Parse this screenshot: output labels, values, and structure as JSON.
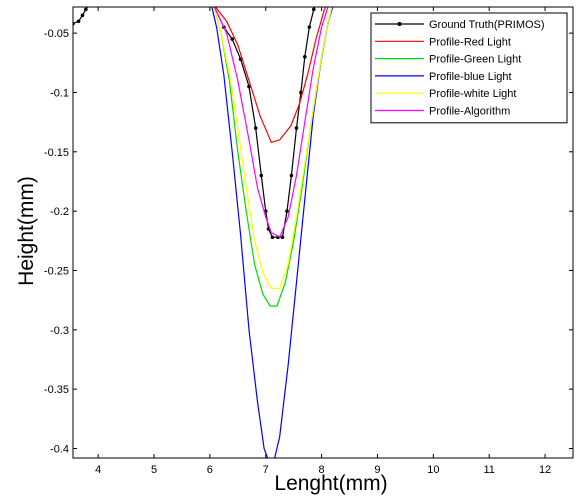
{
  "chart_data": {
    "type": "line",
    "title": "",
    "xlabel": "Lenght(mm)",
    "ylabel": "Height(mm)",
    "xlim": [
      3.55,
      12.5
    ],
    "ylim": [
      -0.408,
      -0.028
    ],
    "xticks": [
      4,
      5,
      6,
      7,
      8,
      9,
      10,
      11,
      12
    ],
    "yticks": [
      -0.05,
      -0.1,
      -0.15,
      -0.2,
      -0.25,
      -0.3,
      -0.35,
      -0.4
    ],
    "ytick_labels": [
      "-0.05",
      "-0.1",
      "-0.15",
      "-0.2",
      "-0.25",
      "-0.3",
      "-0.35",
      "-0.4"
    ],
    "grid": false,
    "legend_position": "top-right",
    "series": [
      {
        "name": "Ground Truth(PRIMOS)",
        "color": "#000000",
        "marker": true,
        "points": [
          [
            3.55,
            -0.042
          ],
          [
            3.65,
            -0.04
          ],
          [
            3.72,
            -0.035
          ],
          [
            3.78,
            -0.03
          ],
          [
            3.85,
            -0.025
          ],
          [
            6.05,
            -0.025
          ],
          [
            6.25,
            -0.045
          ],
          [
            6.4,
            -0.055
          ],
          [
            6.55,
            -0.072
          ],
          [
            6.7,
            -0.095
          ],
          [
            6.82,
            -0.13
          ],
          [
            6.92,
            -0.17
          ],
          [
            7.0,
            -0.2
          ],
          [
            7.05,
            -0.215
          ],
          [
            7.12,
            -0.222
          ],
          [
            7.22,
            -0.222
          ],
          [
            7.3,
            -0.222
          ],
          [
            7.38,
            -0.2
          ],
          [
            7.46,
            -0.17
          ],
          [
            7.55,
            -0.13
          ],
          [
            7.63,
            -0.1
          ],
          [
            7.7,
            -0.07
          ],
          [
            7.78,
            -0.045
          ],
          [
            7.86,
            -0.03
          ],
          [
            7.92,
            -0.022
          ],
          [
            10.8,
            -0.025
          ],
          [
            11.0,
            -0.025
          ]
        ]
      },
      {
        "name": "Profile-Red Light",
        "color": "#ff0000",
        "marker": false,
        "points": [
          [
            6.05,
            -0.025
          ],
          [
            6.3,
            -0.04
          ],
          [
            6.5,
            -0.06
          ],
          [
            6.7,
            -0.09
          ],
          [
            6.9,
            -0.12
          ],
          [
            7.1,
            -0.142
          ],
          [
            7.25,
            -0.14
          ],
          [
            7.45,
            -0.128
          ],
          [
            7.6,
            -0.11
          ],
          [
            7.75,
            -0.085
          ],
          [
            7.9,
            -0.055
          ],
          [
            8.05,
            -0.03
          ],
          [
            8.15,
            -0.02
          ]
        ]
      },
      {
        "name": "Profile-Green Light",
        "color": "#00dd00",
        "marker": false,
        "points": [
          [
            6.05,
            -0.025
          ],
          [
            6.2,
            -0.05
          ],
          [
            6.35,
            -0.09
          ],
          [
            6.5,
            -0.15
          ],
          [
            6.65,
            -0.2
          ],
          [
            6.8,
            -0.245
          ],
          [
            6.95,
            -0.27
          ],
          [
            7.08,
            -0.28
          ],
          [
            7.2,
            -0.28
          ],
          [
            7.35,
            -0.26
          ],
          [
            7.5,
            -0.225
          ],
          [
            7.65,
            -0.18
          ],
          [
            7.8,
            -0.13
          ],
          [
            7.95,
            -0.085
          ],
          [
            8.1,
            -0.045
          ],
          [
            8.2,
            -0.025
          ]
        ]
      },
      {
        "name": "Profile-blue Light",
        "color": "#0000ff",
        "marker": false,
        "points": [
          [
            6.02,
            -0.025
          ],
          [
            6.12,
            -0.045
          ],
          [
            6.25,
            -0.085
          ],
          [
            6.4,
            -0.15
          ],
          [
            6.55,
            -0.22
          ],
          [
            6.7,
            -0.3
          ],
          [
            6.85,
            -0.36
          ],
          [
            6.97,
            -0.4
          ],
          [
            7.05,
            -0.41
          ],
          [
            7.15,
            -0.41
          ],
          [
            7.25,
            -0.39
          ],
          [
            7.4,
            -0.33
          ],
          [
            7.55,
            -0.26
          ],
          [
            7.7,
            -0.19
          ],
          [
            7.85,
            -0.12
          ],
          [
            8.0,
            -0.07
          ],
          [
            8.12,
            -0.04
          ],
          [
            8.22,
            -0.025
          ]
        ]
      },
      {
        "name": "Profile-white Light",
        "color": "#ffff00",
        "marker": false,
        "points": [
          [
            6.05,
            -0.025
          ],
          [
            6.2,
            -0.05
          ],
          [
            6.35,
            -0.085
          ],
          [
            6.5,
            -0.13
          ],
          [
            6.65,
            -0.18
          ],
          [
            6.8,
            -0.225
          ],
          [
            6.95,
            -0.252
          ],
          [
            7.1,
            -0.265
          ],
          [
            7.25,
            -0.265
          ],
          [
            7.4,
            -0.245
          ],
          [
            7.55,
            -0.205
          ],
          [
            7.7,
            -0.16
          ],
          [
            7.85,
            -0.115
          ],
          [
            8.0,
            -0.07
          ],
          [
            8.12,
            -0.04
          ],
          [
            8.2,
            -0.025
          ]
        ]
      },
      {
        "name": "Profile-Algorithm",
        "color": "#ff00ff",
        "marker": false,
        "points": [
          [
            6.05,
            -0.025
          ],
          [
            6.3,
            -0.05
          ],
          [
            6.5,
            -0.09
          ],
          [
            6.7,
            -0.14
          ],
          [
            6.85,
            -0.18
          ],
          [
            7.0,
            -0.205
          ],
          [
            7.1,
            -0.218
          ],
          [
            7.25,
            -0.222
          ],
          [
            7.4,
            -0.205
          ],
          [
            7.55,
            -0.17
          ],
          [
            7.7,
            -0.125
          ],
          [
            7.85,
            -0.08
          ],
          [
            8.0,
            -0.045
          ],
          [
            8.1,
            -0.03
          ],
          [
            8.15,
            -0.022
          ]
        ]
      }
    ]
  }
}
